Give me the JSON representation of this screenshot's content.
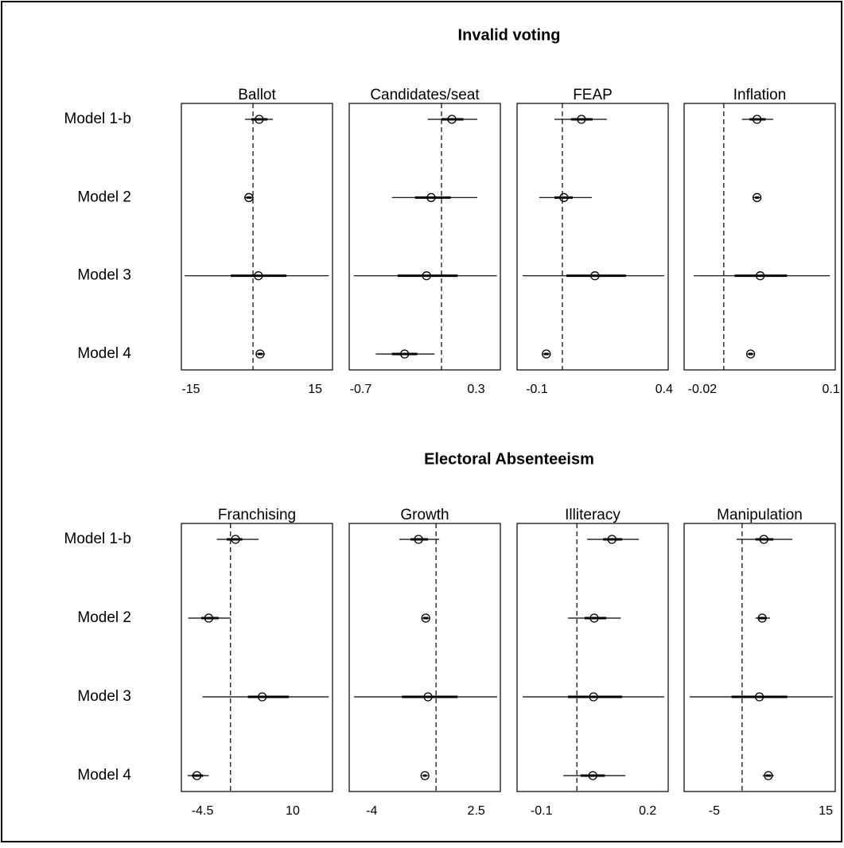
{
  "chart_data": [
    {
      "type": "interval",
      "title": "Invalid voting",
      "categories": [
        "Model 1-b",
        "Model 2",
        "Model 3",
        "Model 4"
      ],
      "panels": [
        {
          "title": "Ballot",
          "xlim": [
            -17.3,
            19.2
          ],
          "xticks": [
            -15,
            15
          ],
          "reference": 0,
          "values": [
            1.5,
            -1.0,
            1.3,
            1.7
          ],
          "lower": [
            -1.9,
            -2.1,
            -16.5,
            0.8
          ],
          "upper": [
            4.8,
            0.2,
            18.3,
            2.9
          ],
          "inner_lower": [
            -0.4,
            -1.6,
            -5.4,
            1.2
          ],
          "inner_upper": [
            3.5,
            -0.4,
            8.1,
            2.3
          ]
        },
        {
          "title": "Candidates/seat",
          "xlim": [
            -0.8,
            0.51
          ],
          "xticks": [
            -0.7,
            0.3
          ],
          "reference": 0,
          "values": [
            0.09,
            -0.09,
            -0.13,
            -0.32
          ],
          "lower": [
            -0.12,
            -0.43,
            -0.76,
            -0.57
          ],
          "upper": [
            0.31,
            0.31,
            0.48,
            -0.06
          ],
          "inner_lower": [
            0,
            -0.23,
            -0.38,
            -0.43
          ],
          "inner_upper": [
            0.19,
            0.08,
            0.14,
            -0.21
          ]
        },
        {
          "title": "FEAP",
          "xlim": [
            -0.178,
            0.416
          ],
          "xticks": [
            -0.1,
            0.4
          ],
          "reference": 0,
          "values": [
            0.075,
            0.006,
            0.128,
            -0.063
          ],
          "lower": [
            -0.031,
            -0.091,
            -0.156,
            -0.078
          ],
          "upper": [
            0.175,
            0.116,
            0.4,
            -0.047
          ],
          "inner_lower": [
            0.034,
            -0.031,
            0.016,
            -0.072
          ],
          "inner_upper": [
            0.119,
            0.041,
            0.25,
            -0.054
          ]
        },
        {
          "title": "Inflation",
          "xlim": [
            -0.037,
            0.104
          ],
          "xticks": [
            -0.02,
            0.1
          ],
          "reference": 0,
          "values": [
            0.031,
            0.031,
            0.034,
            0.025
          ],
          "lower": [
            0.017,
            0.027,
            -0.028,
            0.022
          ],
          "upper": [
            0.046,
            0.035,
            0.099,
            0.028
          ],
          "inner_lower": [
            0.024,
            0.029,
            0.01,
            0.023
          ],
          "inner_upper": [
            0.039,
            0.033,
            0.059,
            0.027
          ]
        }
      ]
    },
    {
      "type": "interval",
      "title": "Electoral Absenteeism",
      "categories": [
        "Model 1-b",
        "Model 2",
        "Model 3",
        "Model 4"
      ],
      "panels": [
        {
          "title": "Franchising",
          "xlim": [
            -7.9,
            16.4
          ],
          "xticks": [
            -4.5,
            10
          ],
          "reference": 0,
          "values": [
            0.8,
            -3.5,
            5.1,
            -5.4
          ],
          "lower": [
            -2.2,
            -6.8,
            -4.5,
            -6.9
          ],
          "upper": [
            4.5,
            0,
            15.8,
            -3.5
          ],
          "inner_lower": [
            -0.6,
            -4.7,
            2.8,
            -6.2
          ],
          "inner_upper": [
            1.9,
            -1.9,
            9.4,
            -4.4
          ]
        },
        {
          "title": "Growth",
          "xlim": [
            -5.4,
            4.0
          ],
          "xticks": [
            -4,
            2.5
          ],
          "reference": 0,
          "values": [
            -1.09,
            -0.64,
            -0.5,
            -0.69
          ],
          "lower": [
            -2.28,
            -0.89,
            -5.1,
            -0.89
          ],
          "upper": [
            0.2,
            -0.4,
            3.8,
            -0.49
          ],
          "inner_lower": [
            -1.58,
            -0.79,
            -2.13,
            -0.79
          ],
          "inner_upper": [
            -0.5,
            -0.49,
            1.34,
            -0.59
          ]
        },
        {
          "title": "Illiteracy",
          "xlim": [
            -0.169,
            0.258
          ],
          "xticks": [
            -0.1,
            0.2
          ],
          "reference": 0,
          "values": [
            0.099,
            0.049,
            0.047,
            0.045
          ],
          "lower": [
            0.029,
            -0.025,
            -0.153,
            -0.038
          ],
          "upper": [
            0.175,
            0.124,
            0.247,
            0.137
          ],
          "inner_lower": [
            0.074,
            0.022,
            -0.025,
            0.011
          ],
          "inner_upper": [
            0.128,
            0.083,
            0.128,
            0.079
          ]
        },
        {
          "title": "Manipulation",
          "xlim": [
            -10.4,
            16.7
          ],
          "xticks": [
            -5,
            15
          ],
          "reference": 0,
          "values": [
            3.9,
            3.6,
            3.1,
            4.7
          ],
          "lower": [
            -1,
            2.4,
            -9.4,
            3.7
          ],
          "upper": [
            9,
            5,
            16.3,
            5.7
          ],
          "inner_lower": [
            2.4,
            2.9,
            -1.9,
            4.2
          ],
          "inner_upper": [
            5.6,
            4.3,
            8.1,
            5.2
          ]
        }
      ]
    }
  ]
}
